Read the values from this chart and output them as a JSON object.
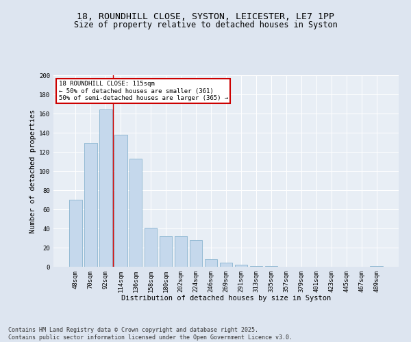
{
  "title_line1": "18, ROUNDHILL CLOSE, SYSTON, LEICESTER, LE7 1PP",
  "title_line2": "Size of property relative to detached houses in Syston",
  "xlabel": "Distribution of detached houses by size in Syston",
  "ylabel": "Number of detached properties",
  "categories": [
    "48sqm",
    "70sqm",
    "92sqm",
    "114sqm",
    "136sqm",
    "158sqm",
    "180sqm",
    "202sqm",
    "224sqm",
    "246sqm",
    "269sqm",
    "291sqm",
    "313sqm",
    "335sqm",
    "357sqm",
    "379sqm",
    "401sqm",
    "423sqm",
    "445sqm",
    "467sqm",
    "489sqm"
  ],
  "values": [
    70,
    129,
    164,
    138,
    113,
    41,
    32,
    32,
    28,
    8,
    4,
    2,
    1,
    1,
    0,
    0,
    0,
    0,
    0,
    0,
    1
  ],
  "bar_color": "#c5d8ec",
  "bar_edgecolor": "#7aaac8",
  "vline_x": 2.5,
  "vline_color": "#cc0000",
  "annotation_box_text": "18 ROUNDHILL CLOSE: 115sqm\n← 50% of detached houses are smaller (361)\n50% of semi-detached houses are larger (365) →",
  "annotation_box_color": "#cc0000",
  "ylim": [
    0,
    200
  ],
  "yticks": [
    0,
    20,
    40,
    60,
    80,
    100,
    120,
    140,
    160,
    180,
    200
  ],
  "bg_color": "#dde5f0",
  "plot_bg_color": "#e8eef5",
  "footer_line1": "Contains HM Land Registry data © Crown copyright and database right 2025.",
  "footer_line2": "Contains public sector information licensed under the Open Government Licence v3.0.",
  "title_fontsize": 9.5,
  "subtitle_fontsize": 8.5,
  "axis_label_fontsize": 7.5,
  "tick_fontsize": 6.5,
  "annotation_fontsize": 6.5,
  "footer_fontsize": 6.0
}
